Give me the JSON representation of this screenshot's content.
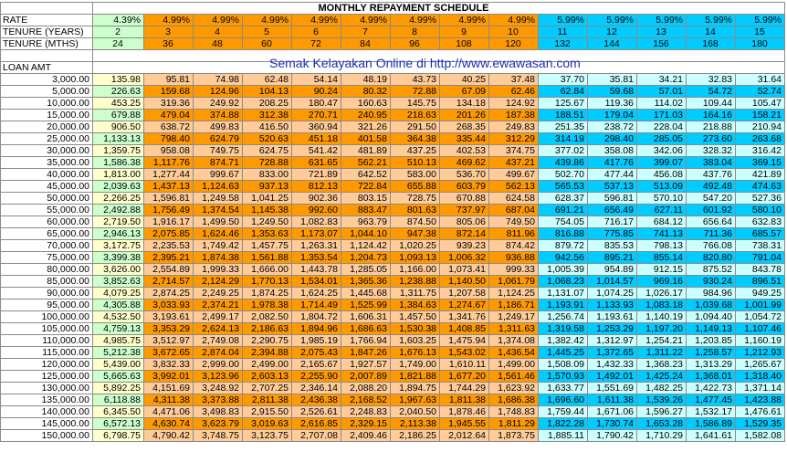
{
  "title": "MONTHLY REPAYMENT SCHEDULE",
  "banner": "Semak Kelayakan Online di http://www.ewawasan.com",
  "labels": {
    "rate": "RATE",
    "tenure_years": "TENURE (YEARS)",
    "tenure_months": "TENURE (MTHS)",
    "loan_amt": "LOAN AMT"
  },
  "colors": {
    "green": "#ccffcc",
    "orange": "#ff9900",
    "blue": "#00ccff",
    "light_yellow": "#ffffcc",
    "light_orange": "#ffcc99",
    "light_cyan": "#ccffff",
    "banner_text": "#1b2fb5"
  },
  "columns": [
    {
      "rate": "4.39%",
      "years": "2",
      "months": "24",
      "group": "g"
    },
    {
      "rate": "4.99%",
      "years": "3",
      "months": "36",
      "group": "o"
    },
    {
      "rate": "4.99%",
      "years": "4",
      "months": "48",
      "group": "o"
    },
    {
      "rate": "4.99%",
      "years": "5",
      "months": "60",
      "group": "o"
    },
    {
      "rate": "4.99%",
      "years": "6",
      "months": "72",
      "group": "o"
    },
    {
      "rate": "4.99%",
      "years": "7",
      "months": "84",
      "group": "o"
    },
    {
      "rate": "4.99%",
      "years": "8",
      "months": "96",
      "group": "o"
    },
    {
      "rate": "4.99%",
      "years": "9",
      "months": "108",
      "group": "o"
    },
    {
      "rate": "4.99%",
      "years": "10",
      "months": "120",
      "group": "o"
    },
    {
      "rate": "5.99%",
      "years": "11",
      "months": "132",
      "group": "b"
    },
    {
      "rate": "5.99%",
      "years": "12",
      "months": "144",
      "group": "b"
    },
    {
      "rate": "5.99%",
      "years": "13",
      "months": "156",
      "group": "b"
    },
    {
      "rate": "5.99%",
      "years": "14",
      "months": "168",
      "group": "b"
    },
    {
      "rate": "5.99%",
      "years": "15",
      "months": "180",
      "group": "b"
    }
  ],
  "rows": [
    {
      "amount": "3,000.00",
      "values": [
        "135.98",
        "95.81",
        "74.98",
        "62.48",
        "54.14",
        "48.19",
        "43.73",
        "40.25",
        "37.48",
        "37.70",
        "35.81",
        "34.21",
        "32.83",
        "31.64"
      ]
    },
    {
      "amount": "5,000.00",
      "values": [
        "226.63",
        "159.68",
        "124.96",
        "104.13",
        "90.24",
        "80.32",
        "72.88",
        "67.09",
        "62.46",
        "62.84",
        "59.68",
        "57.01",
        "54.72",
        "52.74"
      ]
    },
    {
      "amount": "10,000.00",
      "values": [
        "453.25",
        "319.36",
        "249.92",
        "208.25",
        "180.47",
        "160.63",
        "145.75",
        "134.18",
        "124.92",
        "125.67",
        "119.36",
        "114.02",
        "109.44",
        "105.47"
      ]
    },
    {
      "amount": "15,000.00",
      "values": [
        "679.88",
        "479.04",
        "374.88",
        "312.38",
        "270.71",
        "240.95",
        "218.63",
        "201.26",
        "187.38",
        "188.51",
        "179.04",
        "171.03",
        "164.16",
        "158.21"
      ]
    },
    {
      "amount": "20,000.00",
      "values": [
        "906.50",
        "638.72",
        "499.83",
        "416.50",
        "360.94",
        "321.26",
        "291.50",
        "268.35",
        "249.83",
        "251.35",
        "238.72",
        "228.04",
        "218.88",
        "210.94"
      ]
    },
    {
      "amount": "25,000.00",
      "values": [
        "1,133.13",
        "798.40",
        "624.79",
        "520.63",
        "451.18",
        "401.58",
        "364.38",
        "335.44",
        "312.29",
        "314.19",
        "298.40",
        "285.05",
        "273.60",
        "263.68"
      ]
    },
    {
      "amount": "30,000.00",
      "values": [
        "1,359.75",
        "958.08",
        "749.75",
        "624.75",
        "541.42",
        "481.89",
        "437.25",
        "402.53",
        "374.75",
        "377.02",
        "358.08",
        "342.06",
        "328.32",
        "316.42"
      ]
    },
    {
      "amount": "35,000.00",
      "values": [
        "1,586.38",
        "1,117.76",
        "874.71",
        "728.88",
        "631.65",
        "562.21",
        "510.13",
        "469.62",
        "437.21",
        "439.86",
        "417.76",
        "399.07",
        "383.04",
        "369.15"
      ]
    },
    {
      "amount": "40,000.00",
      "values": [
        "1,813.00",
        "1,277.44",
        "999.67",
        "833.00",
        "721.89",
        "642.52",
        "583.00",
        "536.70",
        "499.67",
        "502.70",
        "477.44",
        "456.08",
        "437.76",
        "421.89"
      ]
    },
    {
      "amount": "45,000.00",
      "values": [
        "2,039.63",
        "1,437.13",
        "1,124.63",
        "937.13",
        "812.13",
        "722.84",
        "655.88",
        "603.79",
        "562.13",
        "565.53",
        "537.13",
        "513.09",
        "492.48",
        "474.63"
      ]
    },
    {
      "amount": "50,000.00",
      "values": [
        "2,266.25",
        "1,596.81",
        "1,249.58",
        "1,041.25",
        "902.36",
        "803.15",
        "728.75",
        "670.88",
        "624.58",
        "628.37",
        "596.81",
        "570.10",
        "547.20",
        "527.36"
      ]
    },
    {
      "amount": "55,000.00",
      "values": [
        "2,492.88",
        "1,756.49",
        "1,374.54",
        "1,145.38",
        "992.60",
        "883.47",
        "801.63",
        "737.97",
        "687.04",
        "691.21",
        "656.49",
        "627.11",
        "601.92",
        "580.10"
      ]
    },
    {
      "amount": "60,000.00",
      "values": [
        "2,719.50",
        "1,916.17",
        "1,499.50",
        "1,249.50",
        "1,082.83",
        "963.79",
        "874.50",
        "805.06",
        "749.50",
        "754.05",
        "716.17",
        "684.12",
        "656.64",
        "632.83"
      ]
    },
    {
      "amount": "65,000.00",
      "values": [
        "2,946.13",
        "2,075.85",
        "1,624.46",
        "1,353.63",
        "1,173.07",
        "1,044.10",
        "947.38",
        "872.14",
        "811.96",
        "816.88",
        "775.85",
        "741.13",
        "711.36",
        "685.57"
      ]
    },
    {
      "amount": "70,000.00",
      "values": [
        "3,172.75",
        "2,235.53",
        "1,749.42",
        "1,457.75",
        "1,263.31",
        "1,124.42",
        "1,020.25",
        "939.23",
        "874.42",
        "879.72",
        "835.53",
        "798.13",
        "766.08",
        "738.31"
      ]
    },
    {
      "amount": "75,000.00",
      "values": [
        "3,399.38",
        "2,395.21",
        "1,874.38",
        "1,561.88",
        "1,353.54",
        "1,204.73",
        "1,093.13",
        "1,006.32",
        "936.88",
        "942.56",
        "895.21",
        "855.14",
        "820.80",
        "791.04"
      ]
    },
    {
      "amount": "80,000.00",
      "values": [
        "3,626.00",
        "2,554.89",
        "1,999.33",
        "1,666.00",
        "1,443.78",
        "1,285.05",
        "1,166.00",
        "1,073.41",
        "999.33",
        "1,005.39",
        "954.89",
        "912.15",
        "875.52",
        "843.78"
      ]
    },
    {
      "amount": "85,000.00",
      "values": [
        "3,852.63",
        "2,714.57",
        "2,124.29",
        "1,770.13",
        "1,534.01",
        "1,365.36",
        "1,238.88",
        "1,140.50",
        "1,061.79",
        "1,068.23",
        "1,014.57",
        "969.16",
        "930.24",
        "896.51"
      ]
    },
    {
      "amount": "90,000.00",
      "values": [
        "4,079.25",
        "2,874.25",
        "2,249.25",
        "1,874.25",
        "1,624.25",
        "1,445.68",
        "1,311.75",
        "1,207.58",
        "1,124.25",
        "1,131.07",
        "1,074.25",
        "1,026.17",
        "984.96",
        "949.25"
      ]
    },
    {
      "amount": "95,000.00",
      "values": [
        "4,305.88",
        "3,033.93",
        "2,374.21",
        "1,978.38",
        "1,714.49",
        "1,525.99",
        "1,384.63",
        "1,274.67",
        "1,186.71",
        "1,193.91",
        "1,133.93",
        "1,083.18",
        "1,039.68",
        "1,001.99"
      ]
    },
    {
      "amount": "100,000.00",
      "values": [
        "4,532.50",
        "3,193.61",
        "2,499.17",
        "2,082.50",
        "1,804.72",
        "1,606.31",
        "1,457.50",
        "1,341.76",
        "1,249.17",
        "1,256.74",
        "1,193.61",
        "1,140.19",
        "1,094.40",
        "1,054.72"
      ]
    },
    {
      "amount": "105,000.00",
      "values": [
        "4,759.13",
        "3,353.29",
        "2,624.13",
        "2,186.63",
        "1,894.96",
        "1,686.63",
        "1,530.38",
        "1,408.85",
        "1,311.63",
        "1,319.58",
        "1,253.29",
        "1,197.20",
        "1,149.13",
        "1,107.46"
      ]
    },
    {
      "amount": "110,000.00",
      "values": [
        "4,985.75",
        "3,512.97",
        "2,749.08",
        "2,290.75",
        "1,985.19",
        "1,766.94",
        "1,603.25",
        "1,475.94",
        "1,374.08",
        "1,382.42",
        "1,312.97",
        "1,254.21",
        "1,203.85",
        "1,160.19"
      ]
    },
    {
      "amount": "115,000.00",
      "values": [
        "5,212.38",
        "3,672.65",
        "2,874.04",
        "2,394.88",
        "2,075.43",
        "1,847.26",
        "1,676.13",
        "1,543.02",
        "1,436.54",
        "1,445.25",
        "1,372.65",
        "1,311.22",
        "1,258.57",
        "1,212.93"
      ]
    },
    {
      "amount": "120,000.00",
      "values": [
        "5,439.00",
        "3,832.33",
        "2,999.00",
        "2,499.00",
        "2,165.67",
        "1,927.57",
        "1,749.00",
        "1,610.11",
        "1,499.00",
        "1,508.09",
        "1,432.33",
        "1,368.23",
        "1,313.29",
        "1,265.67"
      ]
    },
    {
      "amount": "125,000.00",
      "values": [
        "5,665.63",
        "3,992.01",
        "3,123.96",
        "2,603.13",
        "2,255.90",
        "2,007.89",
        "1,821.88",
        "1,677.20",
        "1,561.46",
        "1,570.93",
        "1,492.01",
        "1,425.24",
        "1,368.01",
        "1,318.40"
      ]
    },
    {
      "amount": "130,000.00",
      "values": [
        "5,892.25",
        "4,151.69",
        "3,248.92",
        "2,707.25",
        "2,346.14",
        "2,088.20",
        "1,894.75",
        "1,744.29",
        "1,623.92",
        "1,633.77",
        "1,551.69",
        "1,482.25",
        "1,422.73",
        "1,371.14"
      ]
    },
    {
      "amount": "135,000.00",
      "values": [
        "6,118.88",
        "4,311.38",
        "3,373.88",
        "2,811.38",
        "2,436.38",
        "2,168.52",
        "1,967.63",
        "1,811.38",
        "1,686.38",
        "1,696.60",
        "1,611.38",
        "1,539.26",
        "1,477.45",
        "1,423.88"
      ]
    },
    {
      "amount": "140,000.00",
      "values": [
        "6,345.50",
        "4,471.06",
        "3,498.83",
        "2,915.50",
        "2,526.61",
        "2,248.83",
        "2,040.50",
        "1,878.46",
        "1,748.83",
        "1,759.44",
        "1,671.06",
        "1,596.27",
        "1,532.17",
        "1,476.61"
      ]
    },
    {
      "amount": "145,000.00",
      "values": [
        "6,572.13",
        "4,630.74",
        "3,623.79",
        "3,019.63",
        "2,616.85",
        "2,329.15",
        "2,113.38",
        "1,945.55",
        "1,811.29",
        "1,822.28",
        "1,730.74",
        "1,653.28",
        "1,586.89",
        "1,529.35"
      ]
    },
    {
      "amount": "150,000.00",
      "values": [
        "6,798.75",
        "4,790.42",
        "3,748.75",
        "3,123.75",
        "2,707.08",
        "2,409.46",
        "2,186.25",
        "2,012.64",
        "1,873.75",
        "1,885.11",
        "1,790.42",
        "1,710.29",
        "1,641.61",
        "1,582.08"
      ]
    }
  ]
}
